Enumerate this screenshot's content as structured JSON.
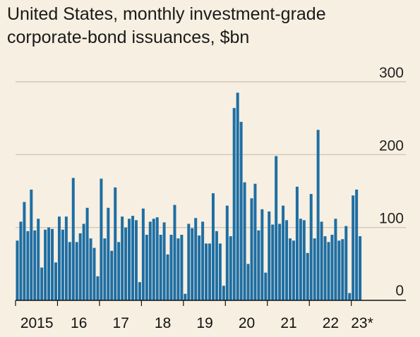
{
  "chart_data": {
    "type": "bar",
    "title": "United States, monthly investment-grade",
    "subtitle": "corporate-bond issuances, $bn",
    "xlabel": "",
    "ylabel": "",
    "ylim": [
      0,
      300
    ],
    "yticks": [
      0,
      100,
      200,
      300
    ],
    "grid": true,
    "color": "#1e6ea3",
    "x_labels": [
      {
        "label": "2015",
        "month_index": 6
      },
      {
        "label": "16",
        "month_index": 18
      },
      {
        "label": "17",
        "month_index": 30
      },
      {
        "label": "18",
        "month_index": 42
      },
      {
        "label": "19",
        "month_index": 54
      },
      {
        "label": "20",
        "month_index": 66
      },
      {
        "label": "21",
        "month_index": 78
      },
      {
        "label": "22",
        "month_index": 90
      },
      {
        "label": "23*",
        "month_index": 99
      }
    ],
    "values": [
      82,
      108,
      135,
      95,
      152,
      96,
      112,
      45,
      97,
      100,
      98,
      52,
      115,
      97,
      115,
      80,
      168,
      80,
      92,
      105,
      127,
      85,
      72,
      33,
      167,
      85,
      127,
      68,
      155,
      80,
      115,
      100,
      112,
      116,
      110,
      25,
      126,
      90,
      108,
      112,
      114,
      90,
      107,
      63,
      90,
      131,
      85,
      90,
      9,
      105,
      99,
      113,
      89,
      108,
      78,
      78,
      147,
      95,
      78,
      20,
      130,
      88,
      264,
      285,
      245,
      162,
      50,
      140,
      160,
      96,
      125,
      38,
      122,
      104,
      198,
      105,
      130,
      110,
      85,
      82,
      156,
      112,
      110,
      65,
      146,
      85,
      234,
      108,
      88,
      80,
      90,
      112,
      82,
      84,
      102,
      10,
      144,
      152,
      88
    ]
  }
}
